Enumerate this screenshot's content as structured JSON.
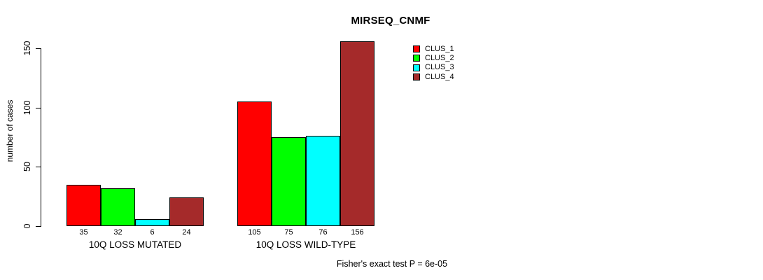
{
  "figure": {
    "background": "#FFFFFF"
  },
  "chart_data": {
    "type": "bar",
    "title": "MIRSEQ_CNMF",
    "ylabel": "number of cases",
    "xlabel": "",
    "ylim": [
      0,
      150
    ],
    "yticks": [
      0,
      50,
      100,
      150
    ],
    "grid": false,
    "legend_position": "top-right-inside",
    "categories": [
      "10Q LOSS MUTATED",
      "10Q LOSS WILD-TYPE"
    ],
    "series": [
      {
        "name": "CLUS_1",
        "color": "#FF0000",
        "values": [
          35,
          105
        ]
      },
      {
        "name": "CLUS_2",
        "color": "#00FF00",
        "values": [
          32,
          75
        ]
      },
      {
        "name": "CLUS_3",
        "color": "#00FFFF",
        "values": [
          6,
          76
        ]
      },
      {
        "name": "CLUS_4",
        "color": "#A52A2A",
        "values": [
          24,
          156
        ]
      }
    ],
    "bar_labels": [
      [
        "35",
        "32",
        "6",
        "24"
      ],
      [
        "105",
        "75",
        "76",
        "156"
      ]
    ],
    "annotation": "Fisher's exact test P = 6e-05"
  }
}
